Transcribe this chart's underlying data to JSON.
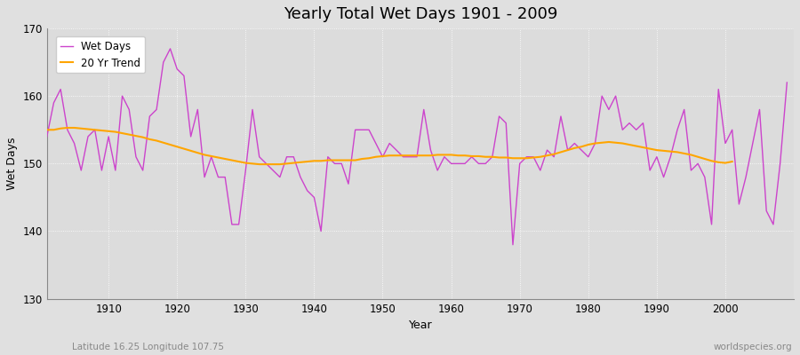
{
  "title": "Yearly Total Wet Days 1901 - 2009",
  "xlabel": "Year",
  "ylabel": "Wet Days",
  "bottom_left_label": "Latitude 16.25 Longitude 107.75",
  "bottom_right_label": "worldspecies.org",
  "ylim": [
    130,
    170
  ],
  "yticks": [
    130,
    140,
    150,
    160,
    170
  ],
  "xlim": [
    1901,
    2010
  ],
  "xticks": [
    1910,
    1920,
    1930,
    1940,
    1950,
    1960,
    1970,
    1980,
    1990,
    2000
  ],
  "start_year": 1901,
  "end_year": 2009,
  "wet_days_color": "#CC44CC",
  "trend_color": "#FFA500",
  "fig_bg_color": "#E0E0E0",
  "plot_bg_color": "#DCDCDC",
  "wet_days": [
    154,
    159,
    161,
    155,
    153,
    149,
    154,
    155,
    149,
    154,
    149,
    160,
    158,
    151,
    149,
    157,
    158,
    165,
    167,
    164,
    163,
    154,
    158,
    148,
    151,
    148,
    148,
    141,
    141,
    149,
    158,
    151,
    150,
    149,
    148,
    151,
    151,
    148,
    146,
    145,
    140,
    151,
    150,
    150,
    147,
    155,
    155,
    155,
    153,
    151,
    153,
    152,
    151,
    151,
    151,
    158,
    152,
    149,
    151,
    150,
    150,
    150,
    151,
    150,
    150,
    151,
    157,
    156,
    138,
    150,
    151,
    151,
    149,
    152,
    151,
    157,
    152,
    153,
    152,
    151,
    153,
    160,
    158,
    160,
    155,
    156,
    155,
    156,
    149,
    151,
    148,
    151,
    155,
    158,
    149,
    150,
    148,
    141,
    161,
    153,
    155,
    144,
    148,
    153,
    158,
    143,
    141,
    150,
    162
  ],
  "trend_values_x": [
    1901,
    1902,
    1903,
    1904,
    1905,
    1906,
    1907,
    1908,
    1909,
    1910,
    1911,
    1912,
    1913,
    1914,
    1915,
    1916,
    1917,
    1918,
    1919,
    1920,
    1921,
    1922,
    1923,
    1924,
    1925,
    1926,
    1927,
    1928,
    1929,
    1930,
    1931,
    1932,
    1933,
    1934,
    1935,
    1936,
    1937,
    1938,
    1939,
    1940,
    1941,
    1942,
    1943,
    1944,
    1945,
    1946,
    1947,
    1948,
    1949,
    1950,
    1951,
    1952,
    1953,
    1954,
    1955,
    1956,
    1957,
    1958,
    1959,
    1960,
    1961,
    1962,
    1963,
    1964,
    1965,
    1966,
    1967,
    1968,
    1969,
    1970,
    1971,
    1972,
    1973,
    1974,
    1975,
    1976,
    1977,
    1978,
    1979,
    1980,
    1981,
    1982,
    1983,
    1984,
    1985,
    1986,
    1987,
    1988,
    1989,
    1990,
    1991,
    1992,
    1993,
    1994,
    1995,
    1996,
    1997,
    1998,
    1999,
    2000,
    2001
  ],
  "trend_values_y": [
    155.0,
    155.0,
    155.2,
    155.3,
    155.3,
    155.2,
    155.1,
    155.0,
    154.9,
    154.8,
    154.7,
    154.5,
    154.3,
    154.1,
    153.9,
    153.6,
    153.4,
    153.1,
    152.8,
    152.5,
    152.2,
    151.9,
    151.6,
    151.3,
    151.1,
    150.9,
    150.7,
    150.5,
    150.3,
    150.1,
    150.0,
    149.9,
    149.9,
    149.9,
    149.9,
    150.0,
    150.1,
    150.2,
    150.3,
    150.4,
    150.4,
    150.5,
    150.5,
    150.5,
    150.5,
    150.5,
    150.7,
    150.8,
    151.0,
    151.1,
    151.2,
    151.2,
    151.2,
    151.2,
    151.2,
    151.2,
    151.2,
    151.3,
    151.3,
    151.3,
    151.2,
    151.2,
    151.1,
    151.1,
    151.0,
    151.0,
    150.9,
    150.9,
    150.8,
    150.8,
    150.8,
    150.9,
    151.0,
    151.2,
    151.4,
    151.7,
    152.0,
    152.3,
    152.5,
    152.8,
    153.0,
    153.1,
    153.2,
    153.1,
    153.0,
    152.8,
    152.6,
    152.4,
    152.2,
    152.0,
    151.9,
    151.8,
    151.7,
    151.5,
    151.3,
    151.0,
    150.7,
    150.4,
    150.2,
    150.1,
    150.3
  ]
}
